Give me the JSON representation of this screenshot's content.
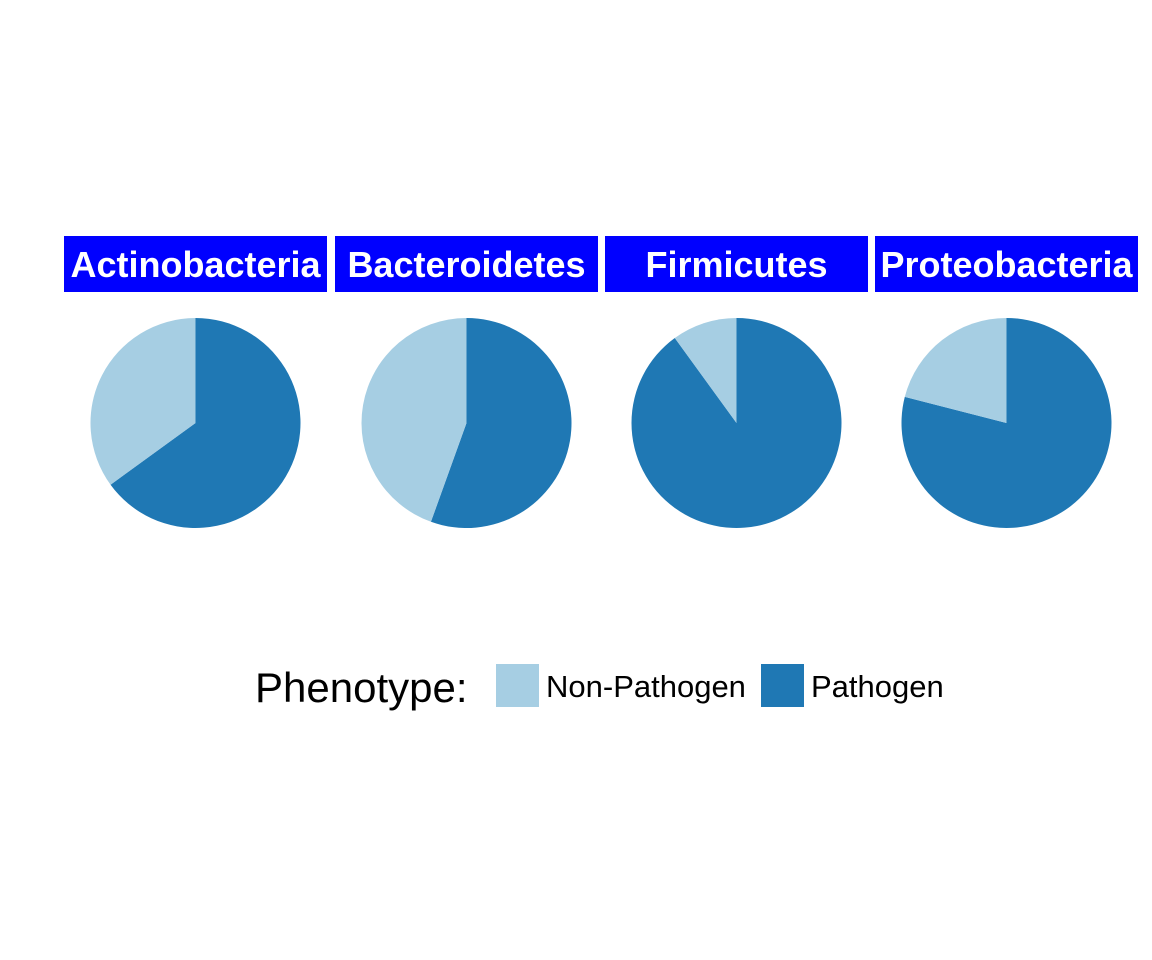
{
  "chart_data": {
    "type": "pie",
    "facets": [
      {
        "name": "Actinobacteria",
        "values": [
          {
            "label": "Non-Pathogen",
            "share": 0.35
          },
          {
            "label": "Pathogen",
            "share": 0.65
          }
        ]
      },
      {
        "name": "Bacteroidetes",
        "values": [
          {
            "label": "Non-Pathogen",
            "share": 0.445
          },
          {
            "label": "Pathogen",
            "share": 0.555
          }
        ]
      },
      {
        "name": "Firmicutes",
        "values": [
          {
            "label": "Non-Pathogen",
            "share": 0.1
          },
          {
            "label": "Pathogen",
            "share": 0.9
          }
        ]
      },
      {
        "name": "Proteobacteria",
        "values": [
          {
            "label": "Non-Pathogen",
            "share": 0.21
          },
          {
            "label": "Pathogen",
            "share": 0.79
          }
        ]
      }
    ],
    "legend": {
      "title": "Phenotype:",
      "position": "bottom",
      "entries": [
        {
          "label": "Non-Pathogen",
          "color": "#a6cee3"
        },
        {
          "label": "Pathogen",
          "color": "#1f78b4"
        }
      ]
    },
    "strip_color": "#0000ff",
    "strip_text_color": "#ffffff"
  }
}
